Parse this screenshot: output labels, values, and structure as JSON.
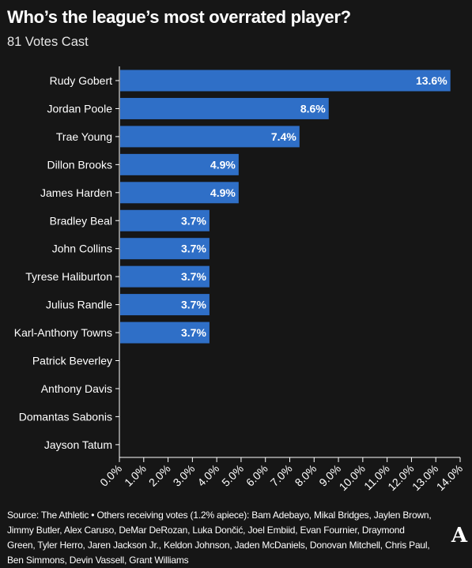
{
  "header": {
    "title": "Who’s the league’s most overrated player?",
    "subtitle": "81 Votes Cast"
  },
  "colors": {
    "background": "#161616",
    "bar": "#2f6fc7",
    "text": "#ffffff"
  },
  "chart_data": {
    "type": "bar",
    "orientation": "horizontal",
    "title": "Who’s the league’s most overrated player?",
    "subtitle": "81 Votes Cast",
    "categories": [
      "Rudy Gobert",
      "Jordan Poole",
      "Trae Young",
      "Dillon Brooks",
      "James Harden",
      "Bradley Beal",
      "John Collins",
      "Tyrese Haliburton",
      "Julius Randle",
      "Karl-Anthony Towns",
      "Patrick Beverley",
      "Anthony Davis",
      "Domantas Sabonis",
      "Jayson Tatum"
    ],
    "values": [
      13.6,
      8.6,
      7.4,
      4.9,
      4.9,
      3.7,
      3.7,
      3.7,
      3.7,
      3.7,
      0,
      0,
      0,
      0
    ],
    "value_labels": [
      "13.6%",
      "8.6%",
      "7.4%",
      "4.9%",
      "4.9%",
      "3.7%",
      "3.7%",
      "3.7%",
      "3.7%",
      "3.7%",
      "",
      "",
      "",
      ""
    ],
    "x_ticks": [
      "0.0%",
      "1.0%",
      "2.0%",
      "3.0%",
      "4.0%",
      "5.0%",
      "6.0%",
      "7.0%",
      "8.0%",
      "9.0%",
      "10.0%",
      "11.0%",
      "12.0%",
      "13.0%",
      "14.0%"
    ],
    "xlim": [
      0,
      14
    ],
    "xlabel": "",
    "ylabel": "",
    "grid": false,
    "legend": "none"
  },
  "footer": {
    "source": "Source: The Athletic • Others receiving votes (1.2% apiece): Bam Adebayo, Mikal Bridges, Jaylen Brown, Jimmy Butler, Alex Caruso, DeMar DeRozan, Luka Dončić, Joel Embiid, Evan Fournier, Draymond Green, Tyler Herro, Jaren Jackson Jr., Keldon Johnson, Jaden McDaniels, Donovan Mitchell, Chris Paul, Ben Simmons, Devin Vassell, Grant Williams",
    "logo": "A"
  }
}
